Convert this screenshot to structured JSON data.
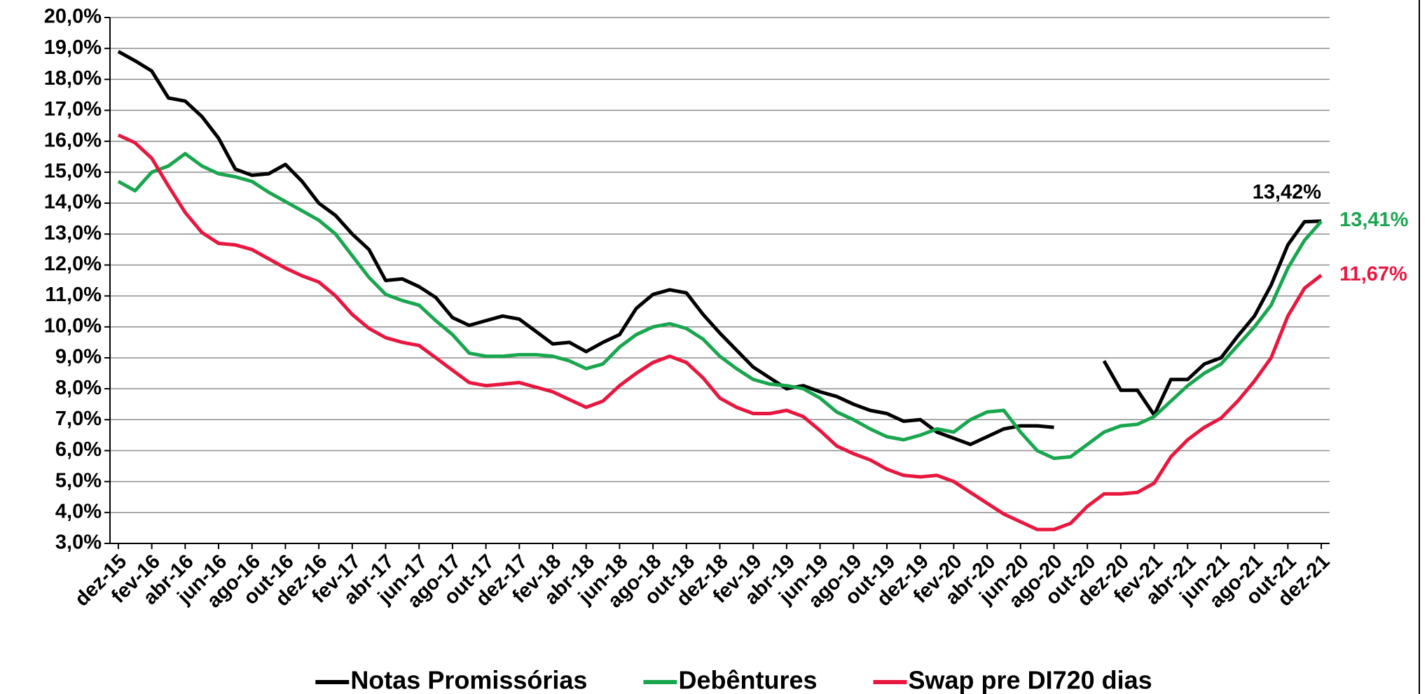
{
  "chart_data": {
    "type": "line",
    "categories": [
      "dez-15",
      null,
      "fev-16",
      null,
      "abr-16",
      null,
      "jun-16",
      null,
      "ago-16",
      null,
      "out-16",
      null,
      "dez-16",
      null,
      "fev-17",
      null,
      "abr-17",
      null,
      "jun-17",
      null,
      "ago-17",
      null,
      "out-17",
      null,
      "dez-17",
      null,
      "fev-18",
      null,
      "abr-18",
      null,
      "jun-18",
      null,
      "ago-18",
      null,
      "out-18",
      null,
      "dez-18",
      null,
      "fev-19",
      null,
      "abr-19",
      null,
      "jun-19",
      null,
      "ago-19",
      null,
      "out-19",
      null,
      "dez-19",
      null,
      "fev-20",
      null,
      "abr-20",
      null,
      "jun-20",
      null,
      "ago-20",
      null,
      "out-20",
      null,
      "dez-20",
      null,
      "fev-21",
      null,
      "abr-21",
      null,
      "jun-21",
      null,
      "ago-21",
      null,
      "out-21",
      null,
      "dez-21"
    ],
    "series": [
      {
        "name": "Notas Promissórias",
        "color": "#000000",
        "values": [
          18.9,
          18.6,
          18.27,
          17.4,
          17.3,
          16.8,
          16.1,
          15.1,
          14.9,
          14.95,
          15.25,
          14.7,
          14.0,
          13.6,
          13.0,
          12.5,
          11.5,
          11.55,
          11.3,
          10.95,
          10.3,
          10.05,
          10.2,
          10.35,
          10.25,
          9.85,
          9.45,
          9.5,
          9.2,
          9.5,
          9.75,
          10.6,
          11.05,
          11.2,
          11.1,
          10.4,
          9.8,
          9.25,
          8.7,
          8.35,
          8.0,
          8.1,
          7.9,
          7.75,
          7.5,
          7.3,
          7.2,
          6.95,
          7.0,
          6.6,
          6.4,
          6.2,
          6.45,
          6.7,
          6.8,
          6.8,
          6.75,
          null,
          null,
          8.9,
          7.95,
          7.95,
          7.15,
          8.3,
          8.3,
          8.8,
          9.0,
          9.7,
          10.35,
          11.35,
          12.65,
          13.4,
          13.42
        ],
        "value_labels": [
          null,
          null,
          null,
          null,
          null,
          null,
          null,
          null,
          null,
          null,
          null,
          null,
          null,
          null,
          null,
          null,
          null,
          null,
          null,
          null,
          null,
          null,
          null,
          null,
          null,
          null,
          null,
          null,
          null,
          null,
          null,
          null,
          null,
          null,
          null,
          null,
          null,
          null,
          null,
          null,
          null,
          null,
          null,
          null,
          null,
          null,
          null,
          null,
          null,
          null,
          null,
          null,
          null,
          null,
          null,
          null,
          null,
          null,
          null,
          null,
          null,
          null,
          null,
          null,
          null,
          null,
          null,
          null,
          null,
          null,
          null,
          null,
          "13,42%"
        ]
      },
      {
        "name": "Debêntures",
        "color": "#1aa64f",
        "values": [
          14.7,
          14.4,
          15.0,
          15.2,
          15.6,
          15.2,
          14.95,
          14.85,
          14.7,
          14.35,
          14.05,
          13.75,
          13.45,
          13.0,
          12.3,
          11.6,
          11.05,
          10.85,
          10.7,
          10.2,
          9.75,
          9.15,
          9.05,
          9.05,
          9.1,
          9.1,
          9.05,
          8.9,
          8.65,
          8.8,
          9.35,
          9.75,
          10.0,
          10.1,
          9.95,
          9.6,
          9.05,
          8.65,
          8.3,
          8.15,
          8.1,
          8.0,
          7.7,
          7.25,
          7.0,
          6.7,
          6.45,
          6.35,
          6.5,
          6.7,
          6.6,
          7.0,
          7.25,
          7.3,
          6.6,
          6.0,
          5.75,
          5.8,
          6.2,
          6.6,
          6.8,
          6.85,
          7.1,
          7.6,
          8.1,
          8.5,
          8.8,
          9.4,
          10.0,
          10.7,
          11.9,
          12.8,
          13.41
        ],
        "value_labels": [
          null,
          null,
          null,
          null,
          null,
          null,
          null,
          null,
          null,
          null,
          null,
          null,
          null,
          null,
          null,
          null,
          null,
          null,
          null,
          null,
          null,
          null,
          null,
          null,
          null,
          null,
          null,
          null,
          null,
          null,
          null,
          null,
          null,
          null,
          null,
          null,
          null,
          null,
          null,
          null,
          null,
          null,
          null,
          null,
          null,
          null,
          null,
          null,
          null,
          null,
          null,
          null,
          null,
          null,
          null,
          null,
          null,
          null,
          null,
          null,
          null,
          null,
          null,
          null,
          null,
          null,
          null,
          null,
          null,
          null,
          null,
          null,
          "13,41%"
        ]
      },
      {
        "name": "Swap pre DI720 dias",
        "color": "#e8173f",
        "values": [
          16.2,
          15.95,
          15.45,
          14.55,
          13.7,
          13.05,
          12.7,
          12.65,
          12.5,
          12.2,
          11.9,
          11.65,
          11.45,
          11.0,
          10.4,
          9.95,
          9.65,
          9.5,
          9.4,
          9.0,
          8.6,
          8.2,
          8.1,
          8.15,
          8.2,
          8.05,
          7.9,
          7.65,
          7.4,
          7.6,
          8.1,
          8.5,
          8.85,
          9.05,
          8.85,
          8.35,
          7.7,
          7.4,
          7.2,
          7.2,
          7.3,
          7.1,
          6.65,
          6.15,
          5.9,
          5.7,
          5.4,
          5.2,
          5.15,
          5.2,
          5.0,
          4.65,
          4.3,
          3.95,
          3.7,
          3.45,
          3.45,
          3.65,
          4.2,
          4.6,
          4.6,
          4.65,
          4.95,
          5.8,
          6.35,
          6.75,
          7.05,
          7.6,
          8.25,
          9.0,
          10.35,
          11.25,
          11.67
        ],
        "value_labels": [
          null,
          null,
          null,
          null,
          null,
          null,
          null,
          null,
          null,
          null,
          null,
          null,
          null,
          null,
          null,
          null,
          null,
          null,
          null,
          null,
          null,
          null,
          null,
          null,
          null,
          null,
          null,
          null,
          null,
          null,
          null,
          null,
          null,
          null,
          null,
          null,
          null,
          null,
          null,
          null,
          null,
          null,
          null,
          null,
          null,
          null,
          null,
          null,
          null,
          null,
          null,
          null,
          null,
          null,
          null,
          null,
          null,
          null,
          null,
          null,
          null,
          null,
          null,
          null,
          null,
          null,
          null,
          null,
          null,
          null,
          null,
          null,
          "11,67%"
        ]
      }
    ],
    "ylim": [
      3,
      20
    ],
    "yticks": [
      {
        "value": 3,
        "label": "3,0%"
      },
      {
        "value": 4,
        "label": "4,0%"
      },
      {
        "value": 5,
        "label": "5,0%"
      },
      {
        "value": 6,
        "label": "6,0%"
      },
      {
        "value": 7,
        "label": "7,0%"
      },
      {
        "value": 8,
        "label": "8,0%"
      },
      {
        "value": 9,
        "label": "9,0%"
      },
      {
        "value": 10,
        "label": "10,0%"
      },
      {
        "value": 11,
        "label": "11,0%"
      },
      {
        "value": 12,
        "label": "12,0%"
      },
      {
        "value": 13,
        "label": "13,0%"
      },
      {
        "value": 14,
        "label": "14,0%"
      },
      {
        "value": 15,
        "label": "15,0%"
      },
      {
        "value": 16,
        "label": "16,0%"
      },
      {
        "value": 17,
        "label": "17,0%"
      },
      {
        "value": 18,
        "label": "18,0%"
      },
      {
        "value": 19,
        "label": "19,0%"
      },
      {
        "value": 20,
        "label": "20,0%"
      }
    ],
    "grid": true,
    "legend": "bottom"
  }
}
